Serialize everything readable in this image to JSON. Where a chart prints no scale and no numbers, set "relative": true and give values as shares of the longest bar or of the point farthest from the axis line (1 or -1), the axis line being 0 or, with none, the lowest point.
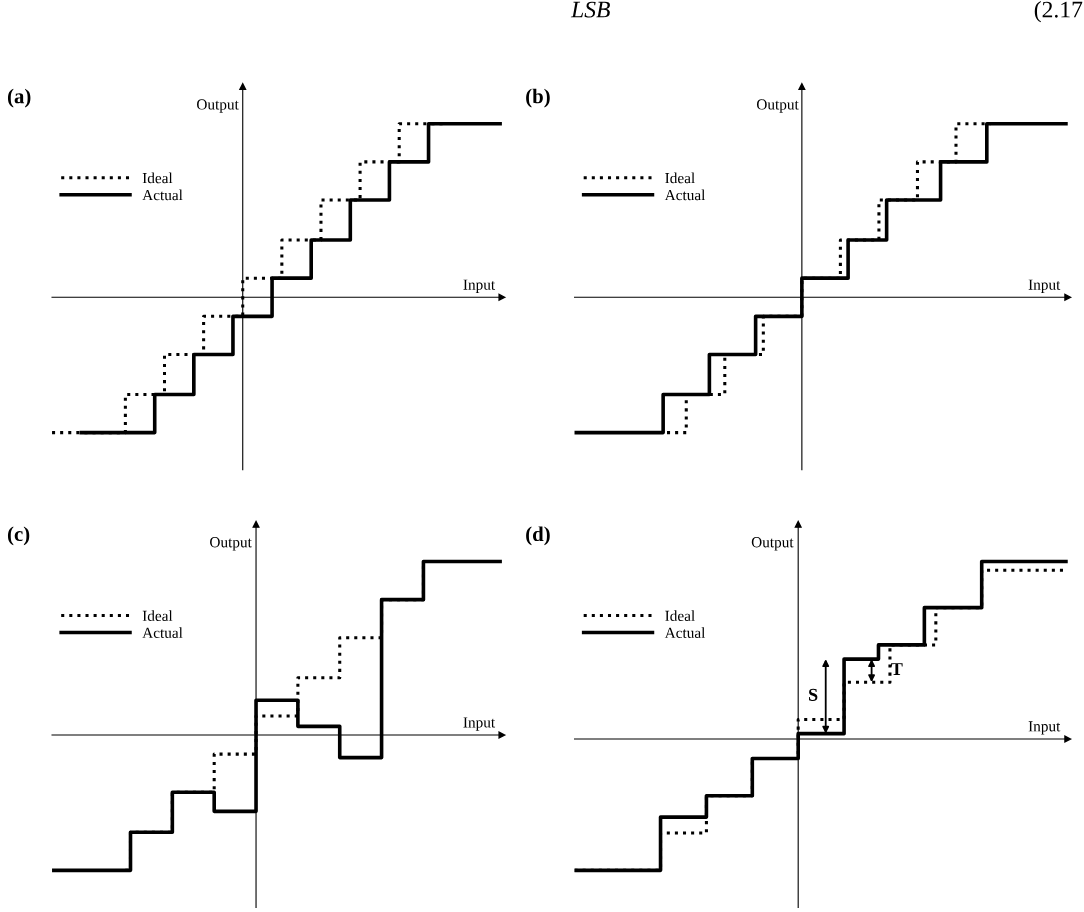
{
  "chart_data": [
    {
      "type": "step",
      "title": "(a)",
      "xlabel": "Input",
      "ylabel": "Output",
      "relative": true,
      "legend": "top left",
      "annotations": [
        "LSB",
        "(2.17"
      ],
      "categories": [
        null,
        null,
        null,
        null,
        null,
        null,
        null,
        null,
        null,
        null,
        null,
        null,
        null,
        null,
        null,
        null,
        null,
        null,
        null,
        null,
        null,
        null,
        null,
        null,
        null,
        null,
        null,
        null,
        null,
        null,
        null,
        null,
        null,
        null,
        null,
        null,
        null,
        null,
        null,
        null,
        null,
        null,
        null,
        null,
        null,
        null,
        null
      ],
      "series": [
        {
          "name": "Ideal",
          "color": "#000000",
          "line_style": "dotted",
          "values": [
            -0.78,
            -0.78,
            -0.78,
            -0.78,
            -0.78,
            -0.78,
            -0.78,
            -0.78,
            -0.56,
            -0.56,
            -0.56,
            -0.56,
            -0.33,
            -0.33,
            -0.33,
            -0.33,
            -0.11,
            -0.11,
            -0.11,
            -0.11,
            0.11,
            0.11,
            0.11,
            0.11,
            0.33,
            0.33,
            0.33,
            0.33,
            0.56,
            0.56,
            0.56,
            0.56,
            0.78,
            0.78,
            0.78,
            0.78,
            1,
            1,
            1,
            1,
            1,
            null,
            null,
            null,
            null,
            null,
            null
          ]
        },
        {
          "name": "Actual",
          "color": "#000000",
          "line_style": "solid",
          "values": [
            null,
            null,
            null,
            -0.78,
            -0.78,
            -0.78,
            -0.78,
            -0.78,
            -0.78,
            -0.78,
            -0.78,
            -0.56,
            -0.56,
            -0.56,
            -0.56,
            -0.33,
            -0.33,
            -0.33,
            -0.33,
            -0.11,
            -0.11,
            -0.11,
            -0.11,
            0.11,
            0.11,
            0.11,
            0.11,
            0.33,
            0.33,
            0.33,
            0.33,
            0.56,
            0.56,
            0.56,
            0.56,
            0.78,
            0.78,
            0.78,
            0.78,
            1,
            1,
            1,
            1,
            1,
            1,
            1,
            1
          ]
        }
      ]
    },
    {
      "type": "step",
      "title": "(b)",
      "xlabel": "Input",
      "ylabel": "Output",
      "relative": true,
      "legend": "top left",
      "categories": [
        null,
        null,
        null,
        null,
        null,
        null,
        null,
        null,
        null,
        null,
        null,
        null,
        null,
        null,
        null,
        null,
        null,
        null,
        null,
        null,
        null,
        null,
        null,
        null,
        null,
        null,
        null,
        null,
        null,
        null,
        null,
        null,
        null,
        null,
        null,
        null,
        null,
        null,
        null,
        null,
        null,
        null,
        null,
        null,
        null,
        null,
        null,
        null,
        null,
        null,
        null,
        null,
        null,
        null,
        null,
        null,
        null,
        null,
        null,
        null,
        null,
        null,
        null,
        null,
        null
      ],
      "series": [
        {
          "name": "Ideal",
          "color": "#000000",
          "line_style": "dotted",
          "values": [
            null,
            null,
            null,
            null,
            null,
            null,
            null,
            null,
            null,
            null,
            null,
            null,
            -0.78,
            -0.78,
            -0.78,
            -0.56,
            -0.56,
            -0.56,
            -0.56,
            -0.56,
            -0.33,
            -0.33,
            -0.33,
            -0.33,
            -0.33,
            -0.11,
            -0.11,
            -0.11,
            -0.11,
            -0.11,
            0.11,
            0.11,
            0.11,
            0.11,
            0.11,
            0.33,
            0.33,
            0.33,
            0.33,
            0.33,
            0.56,
            0.56,
            0.56,
            0.56,
            0.56,
            0.78,
            0.78,
            0.78,
            0.78,
            0.78,
            1,
            1,
            1,
            1,
            1,
            null,
            null,
            null,
            null,
            null,
            null,
            null,
            null,
            null,
            null
          ]
        },
        {
          "name": "Actual",
          "color": "#000000",
          "line_style": "solid",
          "values": [
            -0.78,
            -0.78,
            -0.78,
            -0.78,
            -0.78,
            -0.78,
            -0.78,
            -0.78,
            -0.78,
            -0.78,
            -0.78,
            -0.78,
            -0.56,
            -0.56,
            -0.56,
            -0.56,
            -0.56,
            -0.56,
            -0.33,
            -0.33,
            -0.33,
            -0.33,
            -0.33,
            -0.33,
            -0.11,
            -0.11,
            -0.11,
            -0.11,
            -0.11,
            -0.11,
            0.11,
            0.11,
            0.11,
            0.11,
            0.11,
            0.11,
            0.33,
            0.33,
            0.33,
            0.33,
            0.33,
            0.56,
            0.56,
            0.56,
            0.56,
            0.56,
            0.56,
            0.56,
            0.78,
            0.78,
            0.78,
            0.78,
            0.78,
            0.78,
            1,
            1,
            1,
            1,
            1,
            1,
            1,
            1,
            1,
            1,
            1
          ]
        }
      ]
    },
    {
      "type": "step",
      "title": "(c)",
      "xlabel": "Input",
      "ylabel": "Output",
      "relative": true,
      "legend": "top left",
      "categories": [
        null,
        null,
        null,
        null,
        null,
        null,
        null,
        null,
        null,
        null,
        null,
        null,
        null,
        null,
        null,
        null,
        null,
        null,
        null,
        null,
        null,
        null,
        null,
        null,
        null,
        null,
        null,
        null,
        null,
        null,
        null,
        null,
        null,
        null,
        null,
        null,
        null,
        null,
        null,
        null,
        null,
        null,
        null,
        null
      ],
      "series": [
        {
          "name": "Ideal",
          "color": "#000000",
          "line_style": "dotted",
          "values": [
            null,
            null,
            null,
            null,
            null,
            null,
            null,
            -0.78,
            -0.56,
            -0.56,
            -0.56,
            -0.56,
            -0.33,
            -0.33,
            -0.33,
            -0.33,
            -0.11,
            -0.11,
            -0.11,
            -0.11,
            0.11,
            0.11,
            0.11,
            0.11,
            0.33,
            0.33,
            0.33,
            0.33,
            0.56,
            0.56,
            0.56,
            0.56,
            0.78,
            0.78,
            0.78,
            0.78,
            1,
            1,
            1,
            1,
            1,
            1,
            1,
            1
          ]
        },
        {
          "name": "Actual",
          "color": "#000000",
          "line_style": "solid",
          "values": [
            -0.78,
            -0.78,
            -0.78,
            -0.78,
            -0.78,
            -0.78,
            -0.78,
            -0.78,
            -0.56,
            -0.56,
            -0.56,
            -0.56,
            -0.33,
            -0.33,
            -0.33,
            -0.33,
            -0.44,
            -0.44,
            -0.44,
            -0.44,
            0.2,
            0.2,
            0.2,
            0.2,
            0.05,
            0.05,
            0.05,
            0.05,
            -0.13,
            -0.13,
            -0.13,
            -0.13,
            0.78,
            0.78,
            0.78,
            0.78,
            1,
            1,
            1,
            1,
            1,
            1,
            1,
            1
          ]
        }
      ]
    },
    {
      "type": "step",
      "title": "(d)",
      "xlabel": "Input",
      "ylabel": "Output",
      "relative": true,
      "legend": "top left",
      "annotations": [
        "S",
        "T"
      ],
      "categories": [
        null,
        null,
        null,
        null,
        null,
        null,
        null,
        null,
        null,
        null,
        null,
        null,
        null,
        null,
        null,
        null,
        null,
        null,
        null,
        null,
        null,
        null,
        null,
        null,
        null,
        null,
        null,
        null,
        null,
        null,
        null,
        null,
        null,
        null,
        null,
        null,
        null,
        null,
        null,
        null,
        null,
        null,
        null,
        null
      ],
      "series": [
        {
          "name": "Ideal",
          "color": "#000000",
          "line_style": "dotted",
          "values": [
            -0.74,
            -0.74,
            -0.74,
            -0.74,
            -0.74,
            -0.74,
            -0.74,
            -0.74,
            -0.53,
            -0.53,
            -0.53,
            -0.53,
            -0.32,
            -0.32,
            -0.32,
            -0.32,
            -0.11,
            -0.11,
            -0.11,
            -0.11,
            0.11,
            0.11,
            0.11,
            0.11,
            0.32,
            0.32,
            0.32,
            0.32,
            0.53,
            0.53,
            0.53,
            0.53,
            0.74,
            0.74,
            0.74,
            0.74,
            0.95,
            0.95,
            0.95,
            0.95,
            0.95,
            0.95,
            0.95,
            0.95
          ]
        },
        {
          "name": "Actual",
          "color": "#000000",
          "line_style": "solid",
          "values": [
            -0.74,
            -0.74,
            -0.74,
            -0.74,
            -0.74,
            -0.74,
            -0.74,
            -0.74,
            -0.44,
            -0.44,
            -0.44,
            -0.44,
            -0.32,
            -0.32,
            -0.32,
            -0.32,
            -0.11,
            -0.11,
            -0.11,
            -0.11,
            0.03,
            0.03,
            0.03,
            0.03,
            0.45,
            0.45,
            0.45,
            0.53,
            0.53,
            0.53,
            0.53,
            0.74,
            0.74,
            0.74,
            0.74,
            0.74,
            1,
            1,
            1,
            1,
            1,
            1,
            1,
            1
          ]
        }
      ]
    }
  ]
}
